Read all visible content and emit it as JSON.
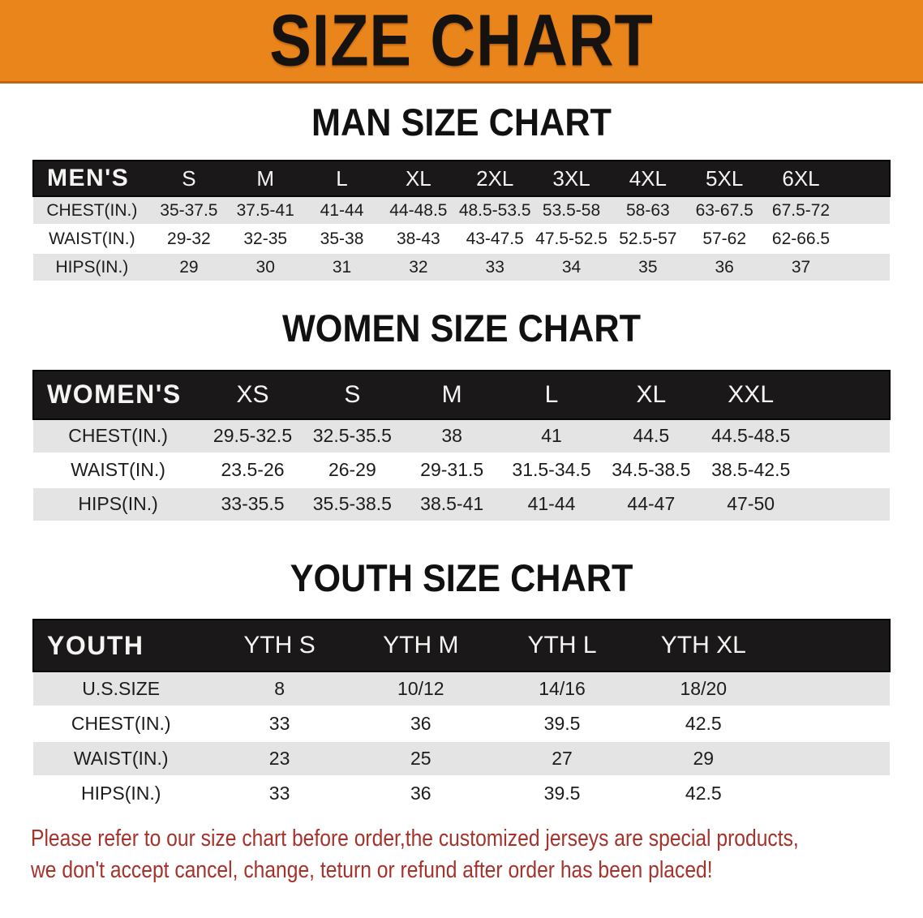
{
  "banner": {
    "title": "SIZE CHART",
    "background_color": "#EA851C",
    "text_color": "#151210"
  },
  "sections": [
    {
      "id": "mens",
      "heading": "MAN SIZE CHART",
      "table": {
        "corner_label": "MEN'S",
        "columns": [
          "S",
          "M",
          "L",
          "XL",
          "2XL",
          "3XL",
          "4XL",
          "5XL",
          "6XL"
        ],
        "rows": [
          {
            "label": "CHEST(IN.)",
            "values": [
              "35-37.5",
              "37.5-41",
              "41-44",
              "44-48.5",
              "48.5-53.5",
              "53.5-58",
              "58-63",
              "63-67.5",
              "67.5-72"
            ]
          },
          {
            "label": "WAIST(IN.)",
            "values": [
              "29-32",
              "32-35",
              "35-38",
              "38-43",
              "43-47.5",
              "47.5-52.5",
              "52.5-57",
              "57-62",
              "62-66.5"
            ]
          },
          {
            "label": "HIPS(IN.)",
            "values": [
              "29",
              "30",
              "31",
              "32",
              "33",
              "34",
              "35",
              "36",
              "37"
            ]
          }
        ]
      }
    },
    {
      "id": "womens",
      "heading": "WOMEN SIZE CHART",
      "table": {
        "corner_label": "WOMEN'S",
        "columns": [
          "XS",
          "S",
          "M",
          "L",
          "XL",
          "XXL"
        ],
        "rows": [
          {
            "label": "CHEST(IN.)",
            "values": [
              "29.5-32.5",
              "32.5-35.5",
              "38",
              "41",
              "44.5",
              "44.5-48.5"
            ]
          },
          {
            "label": "WAIST(IN.)",
            "values": [
              "23.5-26",
              "26-29",
              "29-31.5",
              "31.5-34.5",
              "34.5-38.5",
              "38.5-42.5"
            ]
          },
          {
            "label": "HIPS(IN.)",
            "values": [
              "33-35.5",
              "35.5-38.5",
              "38.5-41",
              "41-44",
              "44-47",
              "47-50"
            ]
          }
        ]
      }
    },
    {
      "id": "youth",
      "heading": "YOUTH SIZE CHART",
      "table": {
        "corner_label": "YOUTH",
        "columns": [
          "YTH S",
          "YTH M",
          "YTH L",
          "YTH XL"
        ],
        "rows": [
          {
            "label": "U.S.SIZE",
            "values": [
              "8",
              "10/12",
              "14/16",
              "18/20"
            ]
          },
          {
            "label": "CHEST(IN.)",
            "values": [
              "33",
              "36",
              "39.5",
              "42.5"
            ]
          },
          {
            "label": "WAIST(IN.)",
            "values": [
              "23",
              "25",
              "27",
              "29"
            ]
          },
          {
            "label": "HIPS(IN.)",
            "values": [
              "33",
              "36",
              "39.5",
              "42.5"
            ]
          }
        ]
      }
    }
  ],
  "footer": {
    "line1": "Please refer to our size chart before order,the customized jerseys are special products,",
    "line2": "we don't accept cancel, change, teturn or refund after order has been placed!",
    "text_color": "#A6322B"
  },
  "colors": {
    "banner_orange": "#EA851C",
    "banner_border": "#C2660E",
    "header_bar_black": "#1A1818",
    "row_stripe_gray": "#E4E4E4",
    "notice_red": "#A6322B"
  }
}
